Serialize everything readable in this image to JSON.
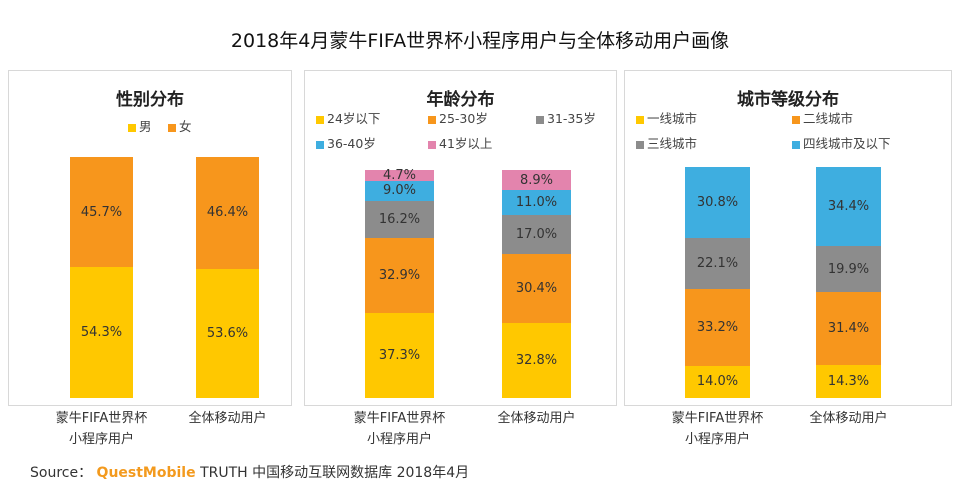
{
  "title": "2018年4月蒙牛FIFA世界杯小程序用户与全体移动用户画像",
  "source": {
    "label": "Source：",
    "brand": "QuestMobile",
    "rest": "TRUTH 中国移动互联网数据库 2018年4月"
  },
  "chart_data": [
    {
      "type": "bar",
      "stacked": true,
      "title": "性别分布",
      "categories": [
        "蒙牛FIFA世界杯\n小程序用户",
        "全体移动用户"
      ],
      "series": [
        {
          "name": "男",
          "color": "#ffc800",
          "values": [
            54.3,
            53.6
          ]
        },
        {
          "name": "女",
          "color": "#f7961c",
          "values": [
            45.7,
            46.4
          ]
        }
      ]
    },
    {
      "type": "bar",
      "stacked": true,
      "title": "年龄分布",
      "categories": [
        "蒙牛FIFA世界杯\n小程序用户",
        "全体移动用户"
      ],
      "series": [
        {
          "name": "24岁以下",
          "color": "#ffc800",
          "values": [
            37.3,
            32.8
          ]
        },
        {
          "name": "25-30岁",
          "color": "#f7961c",
          "values": [
            32.9,
            30.4
          ]
        },
        {
          "name": "31-35岁",
          "color": "#8c8c8c",
          "values": [
            16.2,
            17.0
          ]
        },
        {
          "name": "36-40岁",
          "color": "#3eaee0",
          "values": [
            9.0,
            11.0
          ]
        },
        {
          "name": "41岁以上",
          "color": "#e384ad",
          "values": [
            4.7,
            8.9
          ]
        }
      ]
    },
    {
      "type": "bar",
      "stacked": true,
      "title": "城市等级分布",
      "categories": [
        "蒙牛FIFA世界杯\n小程序用户",
        "全体移动用户"
      ],
      "series": [
        {
          "name": "一线城市",
          "color": "#ffc800",
          "values": [
            14.0,
            14.3
          ]
        },
        {
          "name": "二线城市",
          "color": "#f7961c",
          "values": [
            33.2,
            31.4
          ]
        },
        {
          "name": "三线城市",
          "color": "#8c8c8c",
          "values": [
            22.1,
            19.9
          ]
        },
        {
          "name": "四线城市及以下",
          "color": "#3eaee0",
          "values": [
            30.8,
            34.4
          ]
        }
      ]
    }
  ]
}
